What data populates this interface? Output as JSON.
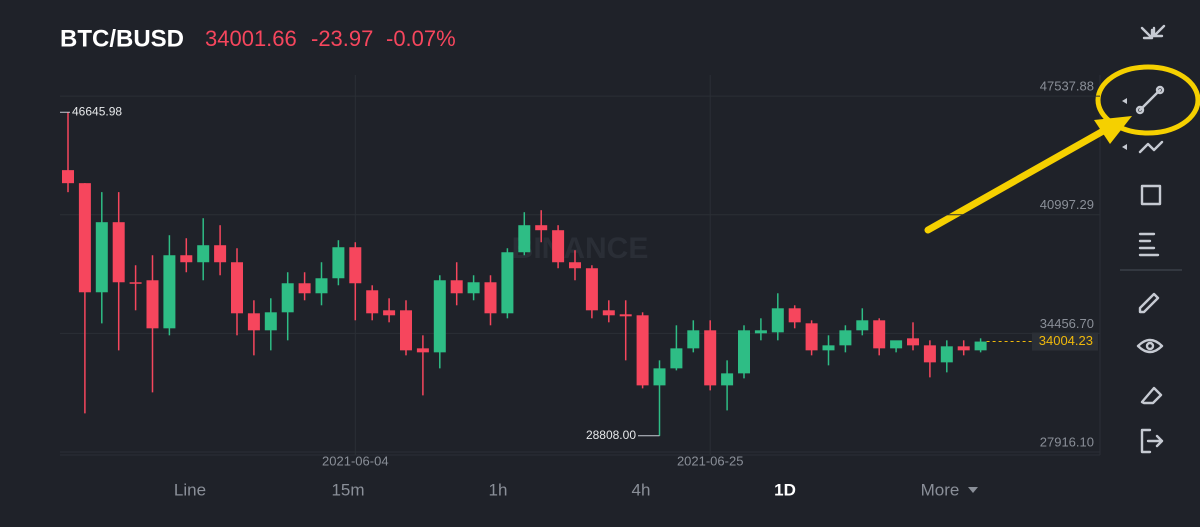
{
  "header": {
    "pair": "BTC/BUSD",
    "price": "34001.66",
    "change": "-23.97",
    "change_pct": "-0.07%"
  },
  "chart_data": {
    "type": "candlestick",
    "watermark": "BINANCE",
    "categories": [
      null,
      null,
      null,
      null,
      null,
      null,
      null,
      null,
      null,
      null,
      null,
      null,
      null,
      null,
      null,
      null,
      null,
      "2021-06-04",
      null,
      null,
      null,
      null,
      null,
      null,
      null,
      null,
      null,
      null,
      null,
      null,
      null,
      null,
      null,
      null,
      null,
      null,
      null,
      null,
      "2021-06-25",
      null,
      null,
      null,
      null,
      null,
      null,
      null,
      null,
      null,
      null,
      null,
      null,
      null,
      null,
      null,
      null
    ],
    "open": [
      43455,
      42737,
      36721,
      40585,
      37273,
      37383,
      34734,
      38763,
      38377,
      39315,
      38377,
      35562,
      34624,
      35617,
      37218,
      36666,
      37494,
      39204,
      36831,
      35727,
      35727,
      33630,
      33410,
      37383,
      36666,
      37273,
      35562,
      38928,
      40419,
      40143,
      38377,
      38046,
      35727,
      35507,
      35452,
      31589,
      32527,
      33630,
      34624,
      31589,
      32251,
      34458,
      34513,
      35838,
      35010,
      33520,
      33796,
      34624,
      35176,
      33630,
      34182,
      33796,
      32858,
      33741,
      33520
    ],
    "high": [
      46645.98,
      42737,
      42240,
      42240,
      38211,
      38763,
      39867,
      39701,
      40805,
      40419,
      39149,
      36279,
      36390,
      37825,
      37825,
      38377,
      39591,
      39480,
      37107,
      36390,
      36279,
      34348,
      37659,
      38377,
      37659,
      37659,
      39149,
      41136,
      41247,
      40419,
      39039,
      38211,
      36279,
      36279,
      35617,
      32968,
      34900,
      35176,
      35176,
      32968,
      34900,
      35286,
      36666,
      36003,
      35176,
      34348,
      34900,
      35838,
      35286,
      33906,
      35065,
      34072,
      34072,
      34072,
      34182
    ],
    "low": [
      42240,
      30043,
      35010,
      33520,
      35727,
      31203,
      34348,
      37825,
      37383,
      37659,
      34348,
      33244,
      33520,
      34072,
      36279,
      36003,
      37107,
      35176,
      35176,
      35065,
      33244,
      31037,
      32527,
      36003,
      36279,
      34900,
      35286,
      38763,
      39480,
      38046,
      37383,
      35286,
      35065,
      32968,
      31423,
      28808,
      32416,
      33410,
      31313,
      30209,
      31975,
      34072,
      34072,
      34734,
      33244,
      32692,
      33410,
      34348,
      33244,
      33410,
      33520,
      32030,
      32306,
      33244,
      33410
    ],
    "close": [
      42737,
      36721,
      40585,
      37273,
      37218,
      34734,
      38763,
      38377,
      39315,
      38377,
      35562,
      34624,
      35617,
      37218,
      36666,
      37494,
      39204,
      37218,
      35562,
      35452,
      33520,
      33410,
      37383,
      36666,
      37273,
      35562,
      38928,
      40419,
      40143,
      38377,
      38046,
      35727,
      35452,
      35396,
      31589,
      32527,
      33630,
      34624,
      31589,
      32251,
      34624,
      34624,
      35838,
      35065,
      33520,
      33796,
      34624,
      35176,
      33630,
      34072,
      33796,
      32858,
      33741,
      33520,
      34004.23
    ],
    "up_color": "#2ebd85",
    "down_color": "#f6465d",
    "ylim": [
      27750,
      48700
    ],
    "yticks": [
      47537.88,
      40997.29,
      {
        "value": 34456.7,
        "label": "34456.70"
      },
      {
        "value": 27916.1,
        "label": "27916.10"
      }
    ],
    "grid": true,
    "annotations": {
      "high": 46645.98,
      "low": {
        "value": 28808,
        "label": "28808.00"
      },
      "last_price": 34004.23
    }
  },
  "tabs": [
    "Line",
    "15m",
    "1h",
    "4h",
    "1D",
    "More"
  ],
  "active_tab": 4
}
